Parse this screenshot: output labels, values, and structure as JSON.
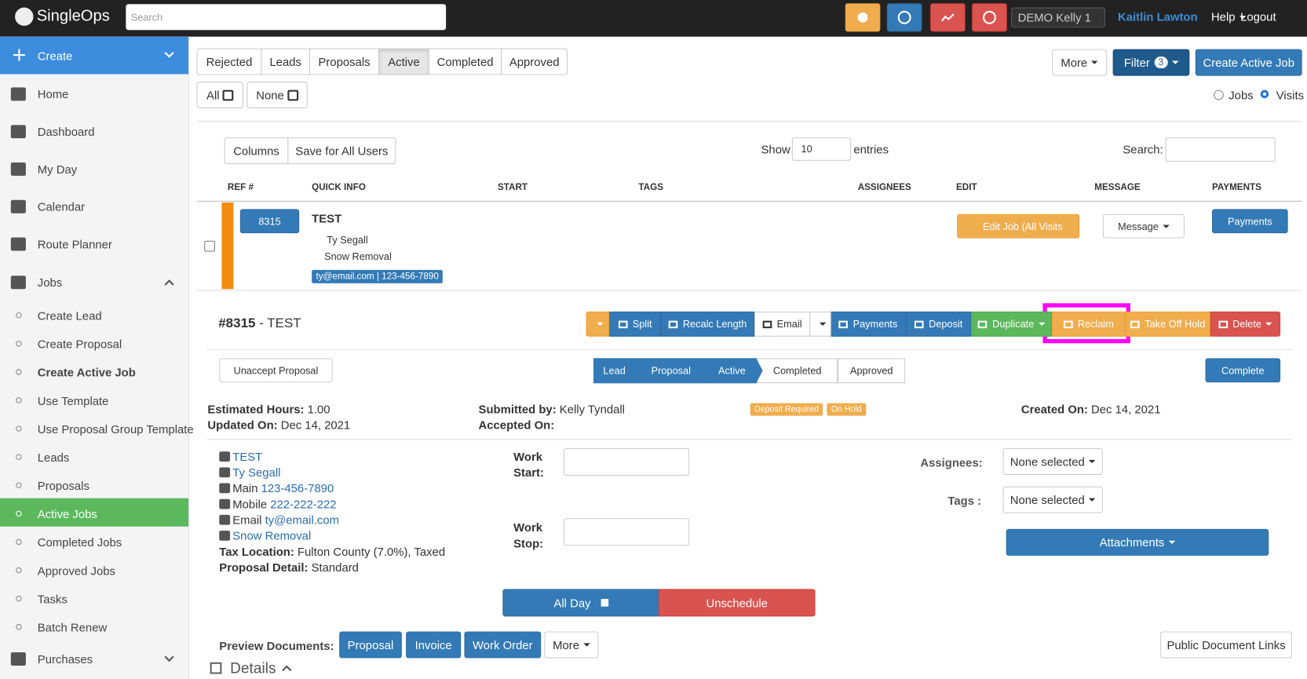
{
  "topbar": {
    "logo": "SingleOps",
    "search_placeholder": "Search",
    "account": "DEMO Kelly 1",
    "user": "Kaitlin Lawton",
    "help": "Help",
    "logout": "Logout"
  },
  "sidebar": {
    "create": "Create",
    "items": [
      "Home",
      "Dashboard",
      "My Day",
      "Calendar",
      "Route Planner",
      "Jobs"
    ],
    "jobs_sub": [
      "Create Lead",
      "Create Proposal",
      "Create Active Job",
      "Use Template",
      "Use Proposal Group Template",
      "Leads",
      "Proposals",
      "Active Jobs",
      "Completed Jobs",
      "Approved Jobs",
      "Tasks",
      "Batch Renew"
    ],
    "purchases": "Purchases"
  },
  "tabs": [
    "Rejected",
    "Leads",
    "Proposals",
    "Active",
    "Completed",
    "Approved"
  ],
  "select": {
    "all": "All",
    "none": "None"
  },
  "toolbar": {
    "more": "More",
    "filter": "Filter",
    "filter_count": "3",
    "create": "Create Active Job",
    "jobs": "Jobs",
    "visits": "Visits"
  },
  "table": {
    "columns": "Columns",
    "save": "Save for All Users",
    "show": "Show",
    "entries_value": "10",
    "entries": "entries",
    "search": "Search:",
    "headers": [
      "REF #",
      "QUICK INFO",
      "START",
      "TAGS",
      "ASSIGNEES",
      "EDIT",
      "MESSAGE",
      "PAYMENTS"
    ],
    "row": {
      "ref": "8315",
      "title": "TEST",
      "contact": "Ty Segall",
      "service": "Snow Removal",
      "badge": "ty@email.com | 123-456-7890",
      "edit": "Edit Job (All Visits",
      "message": "Message",
      "payments": "Payments"
    }
  },
  "detail": {
    "number": "#8315",
    "title": " - TEST",
    "actions": [
      "Split",
      "Recalc Length",
      "Email",
      "Payments",
      "Deposit",
      "Duplicate",
      "Reclaim",
      "Take Off Hold",
      "Delete"
    ],
    "unaccept": "Unaccept Proposal",
    "steps": [
      "Lead",
      "Proposal",
      "Active",
      "Completed",
      "Approved"
    ],
    "complete": "Complete",
    "info": {
      "est_label": "Estimated Hours:",
      "est": "1.00",
      "upd_label": "Updated On:",
      "upd": "Dec 14, 2021",
      "sub_label": "Submitted by:",
      "sub": "Kelly Tyndall",
      "acc_label": "Accepted On:",
      "tags": [
        "Deposit Required",
        "On Hold"
      ],
      "cre_label": "Created On:",
      "cre": "Dec 14, 2021"
    },
    "contact": {
      "name": "TEST",
      "person": "Ty Segall",
      "main_label": "Main",
      "main": "123-456-7890",
      "mobile_label": "Mobile",
      "mobile": "222-222-222",
      "email_label": "Email",
      "email": "ty@email.com",
      "service": "Snow Removal",
      "tax_label": "Tax Location:",
      "tax": "Fulton County (7.0%), Taxed",
      "pd_label": "Proposal Detail:",
      "pd": "Standard"
    },
    "work_start": [
      "Work",
      "Start:"
    ],
    "work_stop": [
      "Work",
      "Stop:"
    ],
    "assignees": "Assignees:",
    "tags_label": "Tags :",
    "none_selected": "None selected",
    "attachments": "Attachments",
    "all_day": "All Day",
    "unschedule": "Unschedule",
    "preview": "Preview Documents:",
    "docs": [
      "Proposal",
      "Invoice",
      "Work Order",
      "More"
    ],
    "public": "Public Document Links",
    "details": "Details"
  }
}
